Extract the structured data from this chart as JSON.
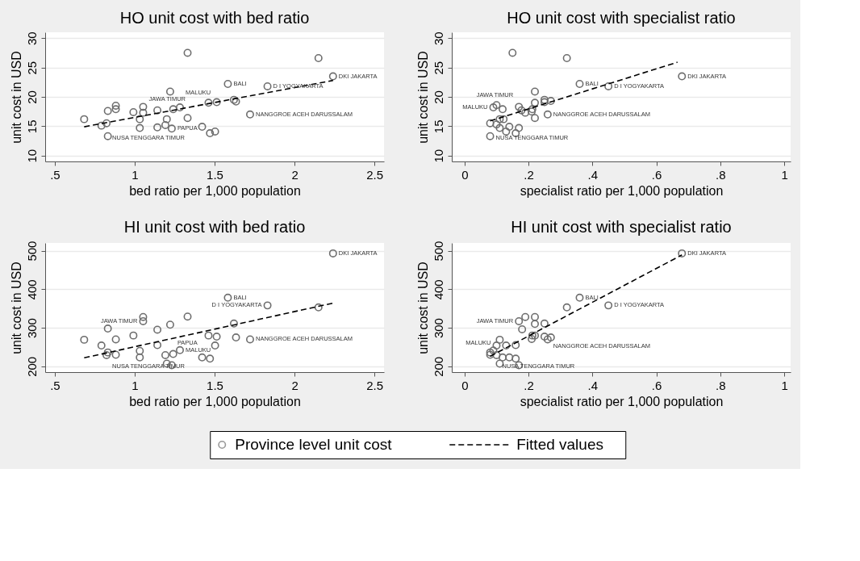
{
  "chart_data": [
    {
      "type": "scatter",
      "title": "HO unit cost with bed ratio",
      "xlabel": "bed ratio per 1,000 population",
      "ylabel": "unit cost in USD",
      "xlim": [
        0.44,
        2.56
      ],
      "xticks": [
        {
          "value": 0.5,
          "label": ".5"
        },
        1,
        1.5,
        2,
        2.5
      ],
      "ylim": [
        9,
        31
      ],
      "yticks": [
        10,
        15,
        20,
        25,
        30
      ],
      "grid": "y",
      "legend": "bottom",
      "series": [
        {
          "name": "Province level unit cost",
          "marker": "circle",
          "color": "#6e6e6e",
          "x": [
            0.684,
            0.792,
            0.824,
            0.832,
            0.832,
            0.882,
            0.882,
            0.992,
            1.032,
            1.032,
            1.053,
            1.053,
            1.142,
            1.142,
            1.192,
            1.201,
            1.222,
            1.232,
            1.241,
            1.283,
            1.331,
            1.331,
            1.422,
            1.462,
            1.471,
            1.503,
            1.513,
            1.583,
            1.621,
            1.634,
            1.722,
            1.831,
            2.15,
            2.241
          ],
          "values": [
            16.2,
            15.1,
            15.5,
            17.6,
            13.3,
            18.5,
            17.9,
            17.4,
            16.2,
            14.7,
            18.3,
            17.3,
            17.7,
            14.8,
            15.2,
            16.2,
            20.9,
            14.6,
            17.9,
            18.2,
            27.5,
            16.4,
            14.9,
            19.0,
            13.8,
            14.1,
            19.1,
            22.2,
            19.5,
            19.2,
            17.0,
            21.8,
            26.6,
            23.5
          ]
        },
        {
          "name": "Fitted values",
          "type": "line",
          "marker": "none",
          "color": "#000000",
          "line_style": "dashed",
          "x": [
            0.684,
            2.241
          ],
          "values": [
            14.9,
            22.8
          ]
        }
      ],
      "annotations": [
        {
          "text": "DKI JAKARTA",
          "x": 2.241,
          "y": 23.5
        },
        {
          "text": "BALI",
          "x": 1.583,
          "y": 22.2
        },
        {
          "text": "D I  YOGYAKARTA",
          "x": 1.831,
          "y": 21.8
        },
        {
          "text": "NANGGROE ACEH DARUSSALAM",
          "x": 1.722,
          "y": 17.0
        },
        {
          "text": "JAWA TIMUR",
          "x": 1.053,
          "y": 18.3
        },
        {
          "text": "MALUKU",
          "x": 1.283,
          "y": 18.2
        },
        {
          "text": "NUSA TENGGARA TIMUR",
          "x": 0.824,
          "y": 15.5
        },
        {
          "text": "PAPUA",
          "x": 1.232,
          "y": 14.6
        }
      ]
    },
    {
      "type": "scatter",
      "title": "HO unit cost with specialist ratio",
      "xlabel": "specialist ratio per 1,000 population",
      "ylabel": "unit cost in USD",
      "xlim": [
        -0.04,
        1.02
      ],
      "xticks": [
        0,
        {
          "value": 0.2,
          "label": ".2"
        },
        {
          "value": 0.4,
          "label": ".4"
        },
        {
          "value": 0.6,
          "label": ".6"
        },
        {
          "value": 0.8,
          "label": ".8"
        },
        1
      ],
      "ylim": [
        9,
        31
      ],
      "yticks": [
        10,
        15,
        20,
        25,
        30
      ],
      "grid": "y",
      "series": [
        {
          "marker": "circle",
          "color": "#6e6e6e",
          "x": [
            0.08,
            0.08,
            0.09,
            0.1,
            0.1,
            0.11,
            0.11,
            0.119,
            0.122,
            0.13,
            0.14,
            0.15,
            0.16,
            0.17,
            0.17,
            0.178,
            0.19,
            0.21,
            0.212,
            0.22,
            0.22,
            0.22,
            0.25,
            0.25,
            0.27,
            0.26,
            0.32,
            0.36,
            0.45,
            0.68
          ],
          "values": [
            13.3,
            15.5,
            18.2,
            18.6,
            15.3,
            16.2,
            14.7,
            17.9,
            16.2,
            14.1,
            14.9,
            27.5,
            13.8,
            18.3,
            14.7,
            17.7,
            17.3,
            17.5,
            17.9,
            20.9,
            19.0,
            16.4,
            19.5,
            19.1,
            19.3,
            17.0,
            26.6,
            22.2,
            21.8,
            23.5
          ]
        },
        {
          "type": "line",
          "marker": "none",
          "color": "#000000",
          "line_style": "dashed",
          "x": [
            0.08,
            0.666
          ],
          "values": [
            15.9,
            25.9
          ]
        }
      ],
      "annotations": [
        {
          "text": "DKI JAKARTA",
          "x": 0.68,
          "y": 23.5
        },
        {
          "text": "BALI",
          "x": 0.36,
          "y": 22.2
        },
        {
          "text": "D I  YOGYAKARTA",
          "x": 0.45,
          "y": 21.8
        },
        {
          "text": "NANGGROE ACEH DARUSSALAM",
          "x": 0.26,
          "y": 17.0
        },
        {
          "text": "JAWA TIMUR",
          "x": 0.17,
          "y": 18.3
        },
        {
          "text": "MALUKU",
          "x": 0.09,
          "y": 18.2
        },
        {
          "text": "NUSA TENGGARA TIMUR",
          "x": 0.08,
          "y": 15.5
        }
      ]
    },
    {
      "type": "scatter",
      "title": "HI unit cost with bed ratio",
      "xlabel": "bed ratio per 1,000 population",
      "ylabel": "unit cost in USD",
      "xlim": [
        0.44,
        2.56
      ],
      "xticks": [
        {
          "value": 0.5,
          "label": ".5"
        },
        1,
        1.5,
        2,
        2.5
      ],
      "ylim": [
        185,
        520
      ],
      "yticks": [
        200,
        300,
        400,
        500
      ],
      "grid": "y",
      "series": [
        {
          "marker": "circle",
          "color": "#6e6e6e",
          "x": [
            0.684,
            0.792,
            0.824,
            0.832,
            0.832,
            0.882,
            0.882,
            0.992,
            1.032,
            1.032,
            1.053,
            1.053,
            1.142,
            1.142,
            1.192,
            1.201,
            1.222,
            1.232,
            1.241,
            1.283,
            1.331,
            1.422,
            1.462,
            1.471,
            1.503,
            1.513,
            1.583,
            1.621,
            1.634,
            1.722,
            1.831,
            2.15,
            2.241
          ],
          "values": [
            269,
            254,
            229,
            236,
            298,
            270,
            230,
            280,
            240,
            223,
            328,
            317,
            295,
            255,
            229,
            207,
            308,
            203,
            232,
            242,
            329,
            223,
            280,
            220,
            254,
            277,
            378,
            311,
            275,
            270,
            358,
            353,
            493
          ]
        },
        {
          "type": "line",
          "marker": "none",
          "color": "#000000",
          "line_style": "dashed",
          "x": [
            0.684,
            2.241
          ],
          "values": [
            222,
            364
          ]
        }
      ],
      "annotations": [
        {
          "text": "DKI JAKARTA",
          "x": 2.241,
          "y": 493
        },
        {
          "text": "BALI",
          "x": 1.583,
          "y": 378
        },
        {
          "text": "D I  YOGYAKARTA",
          "x": 1.831,
          "y": 358
        },
        {
          "text": "NANGGROE ACEH DARUSSALAM",
          "x": 1.722,
          "y": 270
        },
        {
          "text": "JAWA TIMUR",
          "x": 1.053,
          "y": 317
        },
        {
          "text": "MALUKU",
          "x": 1.283,
          "y": 242
        },
        {
          "text": "NUSA TENGGARA TIMUR",
          "x": 0.824,
          "y": 229
        },
        {
          "text": "PAPUA",
          "x": 1.232,
          "y": 232
        }
      ]
    },
    {
      "type": "scatter",
      "title": "HI unit cost with specialist ratio",
      "xlabel": "specialist ratio per 1,000 population",
      "ylabel": "unit cost in USD",
      "xlim": [
        -0.04,
        1.02
      ],
      "xticks": [
        0,
        {
          "value": 0.2,
          "label": ".2"
        },
        {
          "value": 0.4,
          "label": ".4"
        },
        {
          "value": 0.6,
          "label": ".6"
        },
        {
          "value": 0.8,
          "label": ".8"
        },
        1
      ],
      "ylim": [
        185,
        520
      ],
      "yticks": [
        200,
        300,
        400,
        500
      ],
      "grid": "y",
      "series": [
        {
          "marker": "circle",
          "color": "#6e6e6e",
          "x": [
            0.08,
            0.08,
            0.09,
            0.1,
            0.1,
            0.11,
            0.11,
            0.119,
            0.13,
            0.14,
            0.16,
            0.16,
            0.17,
            0.17,
            0.18,
            0.19,
            0.21,
            0.212,
            0.22,
            0.22,
            0.22,
            0.25,
            0.25,
            0.26,
            0.27,
            0.32,
            0.36,
            0.45,
            0.68
          ],
          "values": [
            230,
            236,
            241,
            254,
            229,
            269,
            207,
            223,
            254,
            223,
            255,
            220,
            203,
            317,
            296,
            328,
            271,
            280,
            280,
            328,
            310,
            311,
            277,
            270,
            275,
            353,
            378,
            358,
            493
          ]
        },
        {
          "type": "line",
          "marker": "none",
          "color": "#000000",
          "line_style": "dashed",
          "x": [
            0.08,
            0.68
          ],
          "values": [
            226,
            489
          ]
        }
      ],
      "annotations": [
        {
          "text": "DKI JAKARTA",
          "x": 0.68,
          "y": 493
        },
        {
          "text": "BALI",
          "x": 0.36,
          "y": 378
        },
        {
          "text": "D I  YOGYAKARTA",
          "x": 0.45,
          "y": 358
        },
        {
          "text": "NANGGROE ACEH DARUSSALAM",
          "x": 0.26,
          "y": 270
        },
        {
          "text": "JAWA TIMUR",
          "x": 0.17,
          "y": 317
        },
        {
          "text": "MALUKU",
          "x": 0.1,
          "y": 241
        },
        {
          "text": "NUSA TENGGARA TIMUR",
          "x": 0.1,
          "y": 229
        }
      ]
    }
  ]
}
